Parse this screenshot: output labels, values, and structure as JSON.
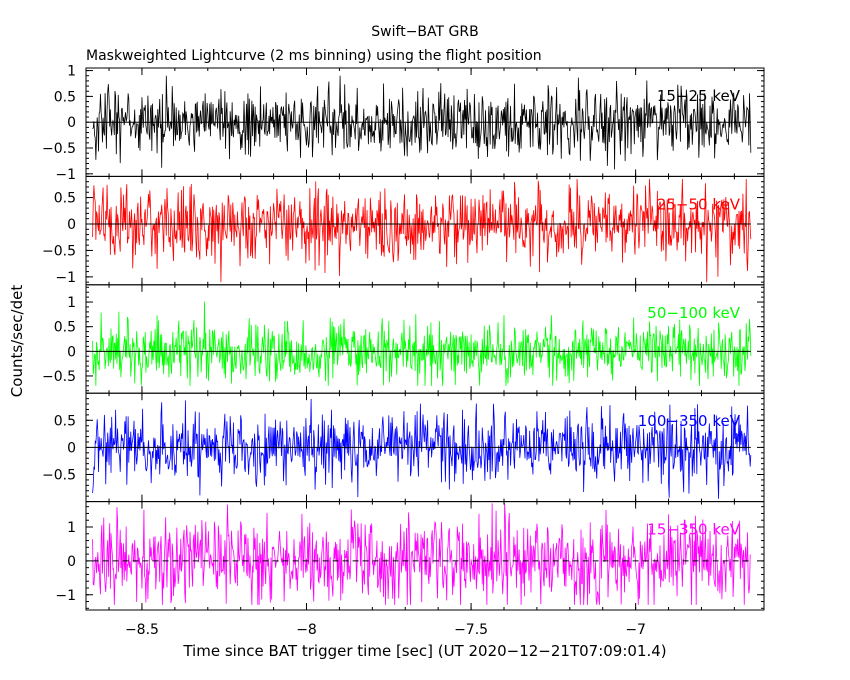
{
  "chart_data": {
    "type": "line",
    "title": "Swift−BAT GRB",
    "subtitle": "Maskweighted Lightcurve (2 ms binning) using the flight position",
    "xlabel": "Time since BAT trigger time [sec] (UT 2020−12−21T07:09:01.4)",
    "ylabel": "Counts/sec/det",
    "xlim": [
      -8.67,
      -6.61
    ],
    "data_x_range": [
      -8.65,
      -6.65
    ],
    "bin_width_sec": 0.002,
    "x_ticks": [
      -8.5,
      -8,
      -7.5,
      -7
    ],
    "x_tick_labels": [
      "−8.5",
      "−8",
      "−7.5",
      "−7"
    ],
    "grid": false,
    "series": [
      {
        "name": "15−25 keV",
        "color": "#000000",
        "ylim": [
          -1.05,
          1.05
        ],
        "y_ticks": [
          -1,
          -0.5,
          0,
          0.5,
          1
        ],
        "y_tick_labels": [
          "−1",
          "−0.5",
          "0",
          "0.5",
          "1"
        ],
        "noise_amplitude": 0.32,
        "peak_range": [
          -0.95,
          0.9
        ],
        "zero_line": "solid"
      },
      {
        "name": "25−50 keV",
        "color": "#ff0000",
        "ylim": [
          -1.15,
          0.9
        ],
        "y_ticks": [
          -1,
          -0.5,
          0,
          0.5
        ],
        "y_tick_labels": [
          "−1",
          "−0.5",
          "0",
          "0.5"
        ],
        "noise_amplitude": 0.34,
        "peak_range": [
          -1.1,
          0.85
        ],
        "zero_line": "solid"
      },
      {
        "name": "50−100 keV",
        "color": "#00ff00",
        "ylim": [
          -0.85,
          1.35
        ],
        "y_ticks": [
          -0.5,
          0,
          0.5,
          1
        ],
        "y_tick_labels": [
          "−0.5",
          "0",
          "0.5",
          "1"
        ],
        "noise_amplitude": 0.3,
        "peak_range": [
          -0.7,
          1.2
        ],
        "zero_line": "solid"
      },
      {
        "name": "100−350 keV",
        "color": "#0000ff",
        "ylim": [
          -1.0,
          1.0
        ],
        "y_ticks": [
          -0.5,
          0,
          0.5
        ],
        "y_tick_labels": [
          "−0.5",
          "0",
          "0.5"
        ],
        "noise_amplitude": 0.32,
        "peak_range": [
          -0.95,
          0.9
        ],
        "zero_line": "solid"
      },
      {
        "name": "15−350 keV",
        "color": "#ff00ff",
        "ylim": [
          -1.45,
          1.75
        ],
        "y_ticks": [
          -1,
          0,
          1
        ],
        "y_tick_labels": [
          "−1",
          "0",
          "1"
        ],
        "noise_amplitude": 0.6,
        "peak_range": [
          -1.3,
          1.7
        ],
        "zero_line": "dashed"
      }
    ]
  }
}
